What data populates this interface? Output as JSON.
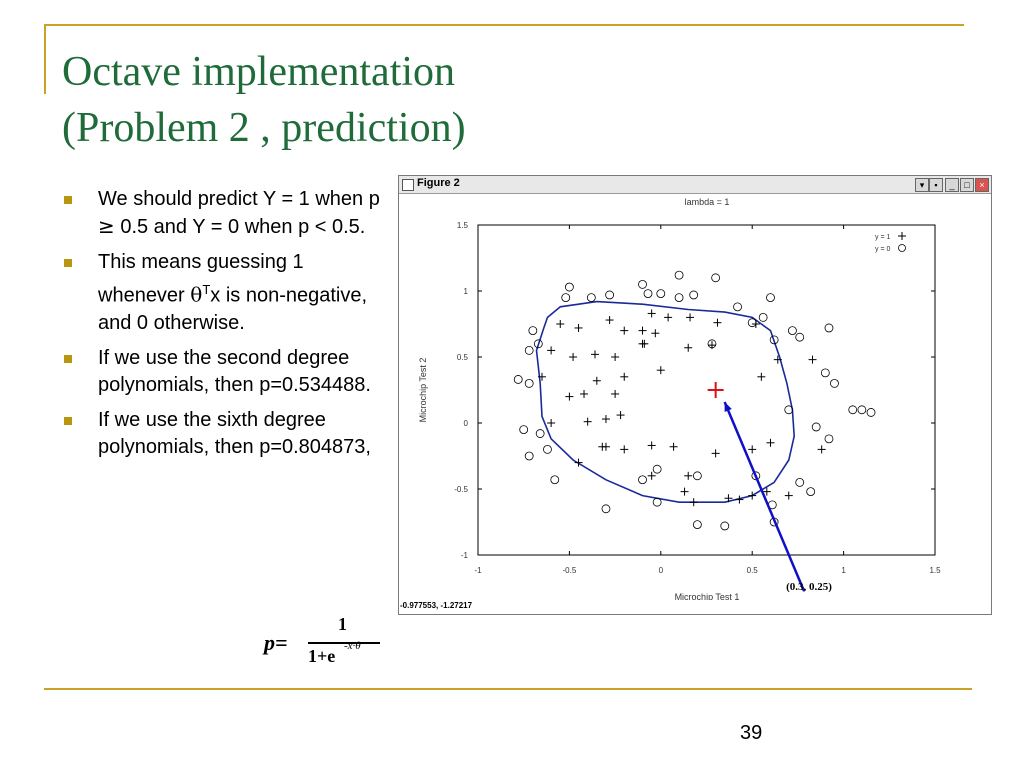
{
  "title": {
    "line1": "Octave implementation",
    "line2": "(Problem 2 , prediction)"
  },
  "bullets": [
    {
      "parts": [
        "We should predict Y = 1 when p ",
        "≥",
        " 0.5 and Y = 0 when p < 0.5."
      ]
    },
    {
      "parts": [
        "This means guessing 1 whenever ",
        "θ",
        "T",
        "x is non-negative, and 0 otherwise."
      ]
    },
    {
      "parts": [
        "If we use the second degree polynomials, then p=0.534488."
      ]
    },
    {
      "parts": [
        "If we use the sixth degree polynomials, then p=0.804873,"
      ]
    }
  ],
  "formula": {
    "lhs": "p=",
    "numerator": "1",
    "denominator": "1+e",
    "exponent": "-x·θ"
  },
  "page_number": "39",
  "figure": {
    "window_title": "Figure 2",
    "status_text": "-0.977553, -1.27217",
    "annotation": "(0.3, 0.25)",
    "colors": {
      "boundary": "#1a2a9a",
      "arrow": "#1010c8",
      "query_point": "#dd1111",
      "plot_border": "#000000"
    }
  },
  "chart_data": {
    "type": "scatter",
    "title": "lambda = 1",
    "xlabel": "Microchip Test 1",
    "ylabel": "Microchip Test 2",
    "xlim": [
      -1,
      1.5
    ],
    "ylim": [
      -1,
      1.5
    ],
    "xticks": [
      "-1",
      "-0.5",
      "0",
      "0.5",
      "1",
      "1.5"
    ],
    "yticks": [
      "-1",
      "-0.5",
      "0",
      "0.5",
      "1",
      "1.5"
    ],
    "legend_position": "top-right",
    "series": [
      {
        "name": "y = 1",
        "marker": "plus",
        "points": [
          [
            -0.55,
            0.75
          ],
          [
            -0.45,
            0.72
          ],
          [
            -0.28,
            0.78
          ],
          [
            -0.2,
            0.7
          ],
          [
            -0.1,
            0.7
          ],
          [
            -0.05,
            0.83
          ],
          [
            0.04,
            0.8
          ],
          [
            0.16,
            0.8
          ],
          [
            0.31,
            0.76
          ],
          [
            0.52,
            0.75
          ],
          [
            -0.6,
            0.55
          ],
          [
            -0.48,
            0.5
          ],
          [
            -0.36,
            0.52
          ],
          [
            -0.25,
            0.5
          ],
          [
            -0.1,
            0.6
          ],
          [
            -0.09,
            0.6
          ],
          [
            -0.03,
            0.68
          ],
          [
            0.15,
            0.57
          ],
          [
            0.28,
            0.59
          ],
          [
            -0.65,
            0.35
          ],
          [
            -0.35,
            0.32
          ],
          [
            -0.2,
            0.35
          ],
          [
            -0.5,
            0.2
          ],
          [
            -0.42,
            0.22
          ],
          [
            -0.25,
            0.22
          ],
          [
            0,
            0.4
          ],
          [
            0.55,
            0.35
          ],
          [
            -0.6,
            0
          ],
          [
            -0.4,
            0.01
          ],
          [
            -0.3,
            0.03
          ],
          [
            -0.22,
            0.06
          ],
          [
            -0.32,
            -0.18
          ],
          [
            -0.3,
            -0.18
          ],
          [
            -0.2,
            -0.2
          ],
          [
            -0.05,
            -0.17
          ],
          [
            0.07,
            -0.18
          ],
          [
            0.3,
            -0.23
          ],
          [
            -0.45,
            -0.3
          ],
          [
            -0.05,
            -0.4
          ],
          [
            0.15,
            -0.4
          ],
          [
            0.6,
            -0.15
          ],
          [
            0.5,
            -0.2
          ],
          [
            0.13,
            -0.52
          ],
          [
            0.18,
            -0.6
          ],
          [
            0.37,
            -0.57
          ],
          [
            0.43,
            -0.58
          ],
          [
            0.5,
            -0.55
          ],
          [
            0.58,
            -0.52
          ],
          [
            0.7,
            -0.55
          ],
          [
            0.88,
            -0.2
          ],
          [
            0.64,
            0.48
          ],
          [
            0.83,
            0.48
          ]
        ]
      },
      {
        "name": "y = 0",
        "marker": "circle",
        "points": [
          [
            -0.7,
            0.7
          ],
          [
            -0.72,
            0.55
          ],
          [
            -0.78,
            0.33
          ],
          [
            -0.72,
            0.3
          ],
          [
            -0.67,
            0.6
          ],
          [
            -0.52,
            0.95
          ],
          [
            -0.5,
            1.03
          ],
          [
            -0.38,
            0.95
          ],
          [
            -0.28,
            0.97
          ],
          [
            -0.1,
            1.05
          ],
          [
            -0.07,
            0.98
          ],
          [
            0.0,
            0.98
          ],
          [
            0.1,
            0.95
          ],
          [
            0.18,
            0.97
          ],
          [
            0.3,
            1.1
          ],
          [
            0.42,
            0.88
          ],
          [
            0.5,
            0.76
          ],
          [
            0.56,
            0.8
          ],
          [
            0.6,
            0.95
          ],
          [
            0.62,
            0.63
          ],
          [
            0.72,
            0.7
          ],
          [
            0.92,
            0.72
          ],
          [
            0.9,
            0.38
          ],
          [
            0.95,
            0.3
          ],
          [
            1.05,
            0.1
          ],
          [
            1.1,
            0.1
          ],
          [
            1.15,
            0.08
          ],
          [
            0.85,
            -0.03
          ],
          [
            0.7,
            0.1
          ],
          [
            0.92,
            -0.12
          ],
          [
            0.76,
            -0.45
          ],
          [
            0.82,
            -0.52
          ],
          [
            0.62,
            -0.75
          ],
          [
            0.35,
            -0.78
          ],
          [
            0.2,
            -0.77
          ],
          [
            -0.02,
            -0.6
          ],
          [
            -0.3,
            -0.65
          ],
          [
            -0.58,
            -0.43
          ],
          [
            -0.62,
            -0.2
          ],
          [
            -0.66,
            -0.08
          ],
          [
            -0.72,
            -0.25
          ],
          [
            -0.75,
            -0.05
          ],
          [
            -0.02,
            -0.35
          ],
          [
            0.52,
            -0.4
          ],
          [
            -0.1,
            -0.43
          ],
          [
            0.28,
            0.6
          ],
          [
            0.1,
            1.12
          ],
          [
            0.76,
            0.65
          ],
          [
            0.2,
            -0.4
          ],
          [
            0.61,
            -0.62
          ]
        ]
      },
      {
        "name": "",
        "marker": "query",
        "points": [
          [
            0.3,
            0.25
          ]
        ]
      }
    ],
    "decision_boundary": [
      [
        -0.62,
        0.8
      ],
      [
        -0.55,
        0.88
      ],
      [
        -0.35,
        0.92
      ],
      [
        -0.1,
        0.9
      ],
      [
        0.15,
        0.86
      ],
      [
        0.35,
        0.84
      ],
      [
        0.5,
        0.8
      ],
      [
        0.6,
        0.7
      ],
      [
        0.65,
        0.5
      ],
      [
        0.69,
        0.3
      ],
      [
        0.72,
        0.1
      ],
      [
        0.73,
        -0.1
      ],
      [
        0.7,
        -0.28
      ],
      [
        0.62,
        -0.45
      ],
      [
        0.5,
        -0.55
      ],
      [
        0.35,
        -0.6
      ],
      [
        0.1,
        -0.6
      ],
      [
        -0.1,
        -0.55
      ],
      [
        -0.3,
        -0.43
      ],
      [
        -0.48,
        -0.28
      ],
      [
        -0.6,
        -0.12
      ],
      [
        -0.65,
        0.05
      ],
      [
        -0.66,
        0.3
      ],
      [
        -0.68,
        0.55
      ],
      [
        -0.64,
        0.72
      ],
      [
        -0.62,
        0.8
      ]
    ]
  }
}
